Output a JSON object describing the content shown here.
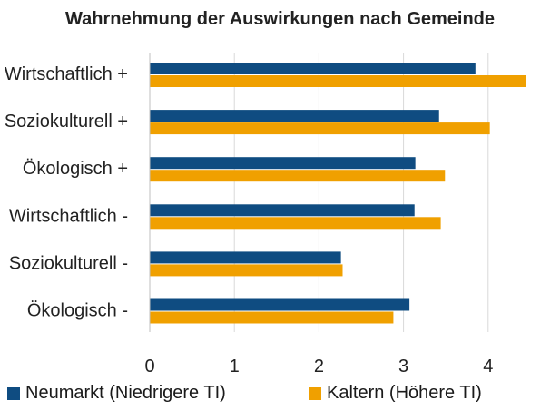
{
  "chart_data": {
    "type": "bar",
    "orientation": "horizontal",
    "title": "Wahrnehmung der Auswirkungen nach Gemeinde",
    "categories": [
      "Wirtschaftlich +",
      "Soziokulturell +",
      "Ökologisch +",
      "Wirtschaftlich -",
      "Soziokulturell -",
      "Ökologisch -"
    ],
    "series": [
      {
        "name": "Neumarkt (Niedrigere TI)",
        "color": "#0f4c81",
        "values": [
          3.85,
          3.42,
          3.14,
          3.13,
          2.26,
          3.07
        ]
      },
      {
        "name": "Kaltern (Höhere TI)",
        "color": "#f0a000",
        "values": [
          4.45,
          4.02,
          3.49,
          3.44,
          2.28,
          2.88
        ]
      }
    ],
    "xlim": [
      0,
      4.6
    ],
    "xticks": [
      "0",
      "1",
      "2",
      "3",
      "4"
    ],
    "grid": true,
    "legend_position": "bottom"
  }
}
